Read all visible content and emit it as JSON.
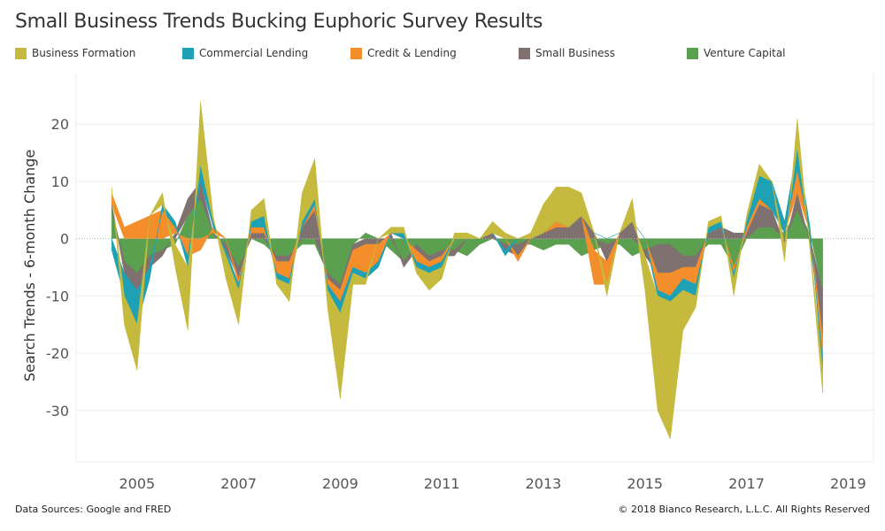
{
  "chart_data": {
    "type": "area",
    "title": "Small Business Trends Bucking Euphoric Survey Results",
    "ylabel": "Search Trends - 6-month Change",
    "xlabel": "",
    "x_ticks": [
      "2005",
      "2007",
      "2009",
      "2011",
      "2013",
      "2015",
      "2017",
      "2019"
    ],
    "y_ticks": [
      20,
      10,
      0,
      -10,
      -20,
      -30
    ],
    "ylim": [
      -39,
      29
    ],
    "xlim": [
      2003.8,
      2019.5
    ],
    "grid": true,
    "legend_position": "top",
    "x": [
      2004.5,
      2004.75,
      2005.0,
      2005.25,
      2005.5,
      2005.75,
      2006.0,
      2006.25,
      2006.5,
      2006.75,
      2007.0,
      2007.25,
      2007.5,
      2007.75,
      2008.0,
      2008.25,
      2008.5,
      2008.75,
      2009.0,
      2009.25,
      2009.5,
      2009.75,
      2010.0,
      2010.25,
      2010.5,
      2010.75,
      2011.0,
      2011.25,
      2011.5,
      2011.75,
      2012.0,
      2012.25,
      2012.5,
      2012.75,
      2013.0,
      2013.25,
      2013.5,
      2013.75,
      2014.0,
      2014.25,
      2014.5,
      2014.75,
      2015.0,
      2015.25,
      2015.5,
      2015.75,
      2016.0,
      2016.25,
      2016.5,
      2016.75,
      2017.0,
      2017.25,
      2017.5,
      2017.75,
      2018.0,
      2018.25,
      2018.5
    ],
    "series": [
      {
        "name": "Venture Capital",
        "color": "#5aa04f",
        "values": [
          5,
          -4,
          -6,
          -3,
          -2,
          -1,
          4,
          7,
          1,
          -1,
          -5,
          0,
          -1,
          -3,
          -3,
          -1,
          -1,
          -6,
          -8,
          -1,
          1,
          0,
          -2,
          -4,
          -1,
          -3,
          -2,
          -2,
          -3,
          -1,
          0,
          -1,
          -1,
          -1,
          -2,
          -1,
          -1,
          -3,
          -2,
          -1,
          -1,
          -3,
          -2,
          -1,
          -1,
          -3,
          -3,
          -1,
          -1,
          -5,
          0,
          2,
          2,
          1,
          5,
          1,
          -9
        ]
      },
      {
        "name": "Small Business",
        "color": "#7e716f",
        "values": [
          1,
          -2,
          -3,
          -2,
          -1,
          1,
          3,
          3,
          0,
          -1,
          -2,
          1,
          1,
          -1,
          -1,
          2,
          5,
          -1,
          -1,
          -1,
          -1,
          -1,
          1,
          -1,
          -1,
          -1,
          -1,
          -1,
          0,
          0,
          1,
          -1,
          -2,
          0,
          1,
          2,
          2,
          4,
          1,
          -3,
          1,
          3,
          -1,
          -5,
          -5,
          -2,
          -2,
          1,
          2,
          1,
          1,
          4,
          3,
          -1,
          3,
          -1,
          -8
        ]
      },
      {
        "name": "Credit & Lending",
        "color": "#f38e2b",
        "values": [
          2,
          2,
          3,
          4,
          5,
          1,
          -3,
          -2,
          1,
          0,
          -1,
          1,
          1,
          -2,
          -3,
          0,
          1,
          -1,
          -2,
          -3,
          -5,
          -3,
          0,
          0,
          -2,
          -1,
          -1,
          0,
          0,
          0,
          0,
          0,
          -1,
          0,
          0,
          1,
          0,
          0,
          -6,
          -4,
          0,
          0,
          0,
          -3,
          -4,
          -2,
          -3,
          0,
          0,
          -1,
          1,
          1,
          0,
          0,
          4,
          0,
          -4
        ]
      },
      {
        "name": "Commercial Lending",
        "color": "#1ea0b5",
        "values": [
          -2,
          -4,
          -6,
          -2,
          1,
          1,
          -2,
          3,
          1,
          -1,
          -1,
          1,
          2,
          -1,
          -1,
          1,
          1,
          -1,
          -2,
          -1,
          -1,
          -1,
          0,
          1,
          -1,
          -1,
          -1,
          0,
          0,
          0,
          0,
          -1,
          0,
          0,
          0,
          0,
          0,
          0,
          0,
          0,
          0,
          0,
          0,
          -1,
          -1,
          -2,
          -2,
          1,
          1,
          -1,
          1,
          4,
          5,
          2,
          4,
          1,
          -2
        ]
      },
      {
        "name": "Business Formation",
        "color": "#c5ba3e",
        "values": [
          1,
          -5,
          -8,
          0,
          2,
          -4,
          -11,
          11,
          1,
          -4,
          -6,
          2,
          3,
          -1,
          -3,
          5,
          7,
          -3,
          -15,
          -2,
          -1,
          0,
          1,
          1,
          -1,
          -3,
          -2,
          1,
          1,
          0,
          2,
          1,
          0,
          1,
          5,
          6,
          7,
          4,
          0,
          -2,
          0,
          4,
          -6,
          -20,
          -24,
          -7,
          -2,
          1,
          1,
          -3,
          1,
          2,
          0,
          -3,
          5,
          -1,
          -4
        ]
      }
    ]
  },
  "legend": {
    "items": [
      {
        "label": "Business Formation",
        "color": "#c5ba3e"
      },
      {
        "label": "Commercial Lending",
        "color": "#1ea0b5"
      },
      {
        "label": "Credit & Lending",
        "color": "#f38e2b"
      },
      {
        "label": "Small Business",
        "color": "#7e716f"
      },
      {
        "label": "Venture Capital",
        "color": "#5aa04f"
      }
    ]
  },
  "footer": {
    "source": "Data Sources: Google and FRED",
    "copyright": "© 2018 Bianco Research, L.L.C. All Rights Reserved"
  }
}
